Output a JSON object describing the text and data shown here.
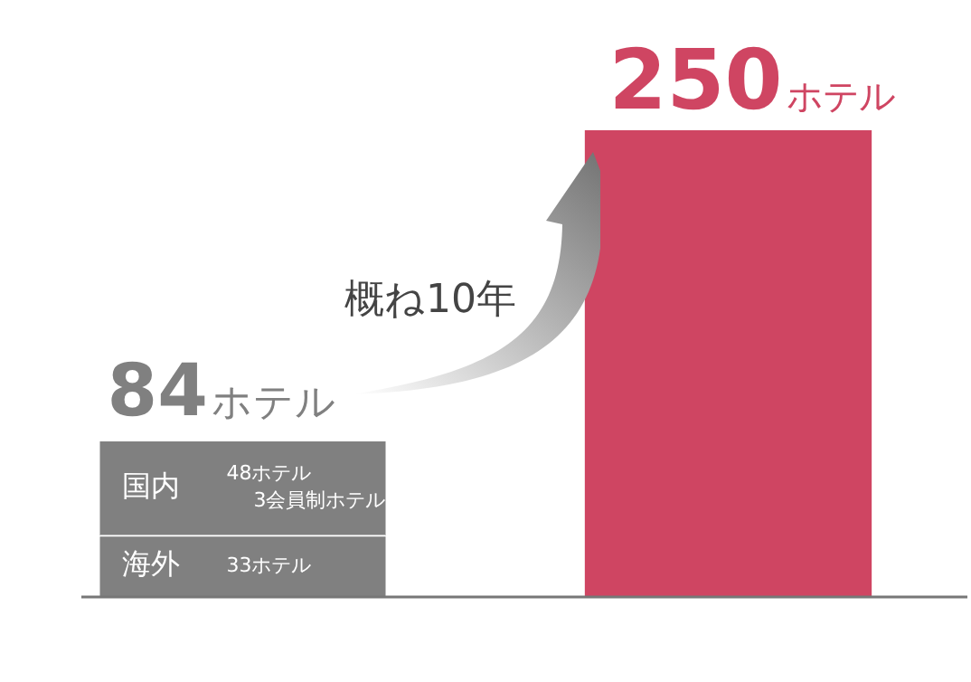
{
  "chart_data": {
    "type": "bar",
    "stacked": true,
    "categories": [
      null,
      null
    ],
    "series": [
      {
        "name": "海外",
        "color": "#808080",
        "values": [
          33,
          null
        ],
        "value_labels": [
          "33ホテル",
          null
        ]
      },
      {
        "name": "国内",
        "color": "#808080",
        "values": [
          51,
          null
        ]
      },
      {
        "color": "#cf4562",
        "values": [
          null,
          250
        ]
      }
    ],
    "totals": [
      "84ホテル",
      "250ホテル"
    ],
    "annotations": [
      "概ね10年",
      "48ホテル",
      "3会員制ホテル"
    ]
  }
}
